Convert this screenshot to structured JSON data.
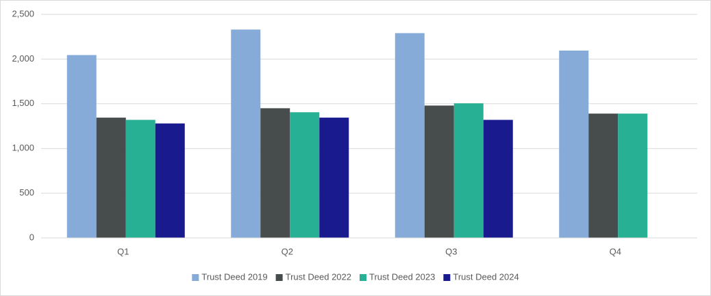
{
  "chart_data": {
    "type": "bar",
    "categories": [
      "Q1",
      "Q2",
      "Q3",
      "Q4"
    ],
    "series": [
      {
        "name": "Trust Deed 2019",
        "color": "#86abd8",
        "values": [
          2045,
          2330,
          2290,
          2095
        ]
      },
      {
        "name": "Trust Deed 2022",
        "color": "#474c4c",
        "values": [
          1345,
          1450,
          1480,
          1390
        ]
      },
      {
        "name": "Trust Deed 2023",
        "color": "#28b094",
        "values": [
          1320,
          1405,
          1505,
          1390
        ]
      },
      {
        "name": "Trust Deed 2024",
        "color": "#1a1a8f",
        "values": [
          1280,
          1345,
          1320,
          null
        ]
      }
    ],
    "ylim": [
      0,
      2500
    ],
    "yticks": [
      0,
      500,
      {
        "value": 1000,
        "label": "1,000"
      },
      {
        "value": 1500,
        "label": "1,500"
      },
      {
        "value": 2000,
        "label": "2,000"
      },
      {
        "value": 2500,
        "label": "2,500"
      }
    ],
    "grid": true,
    "legend": "bottom"
  }
}
